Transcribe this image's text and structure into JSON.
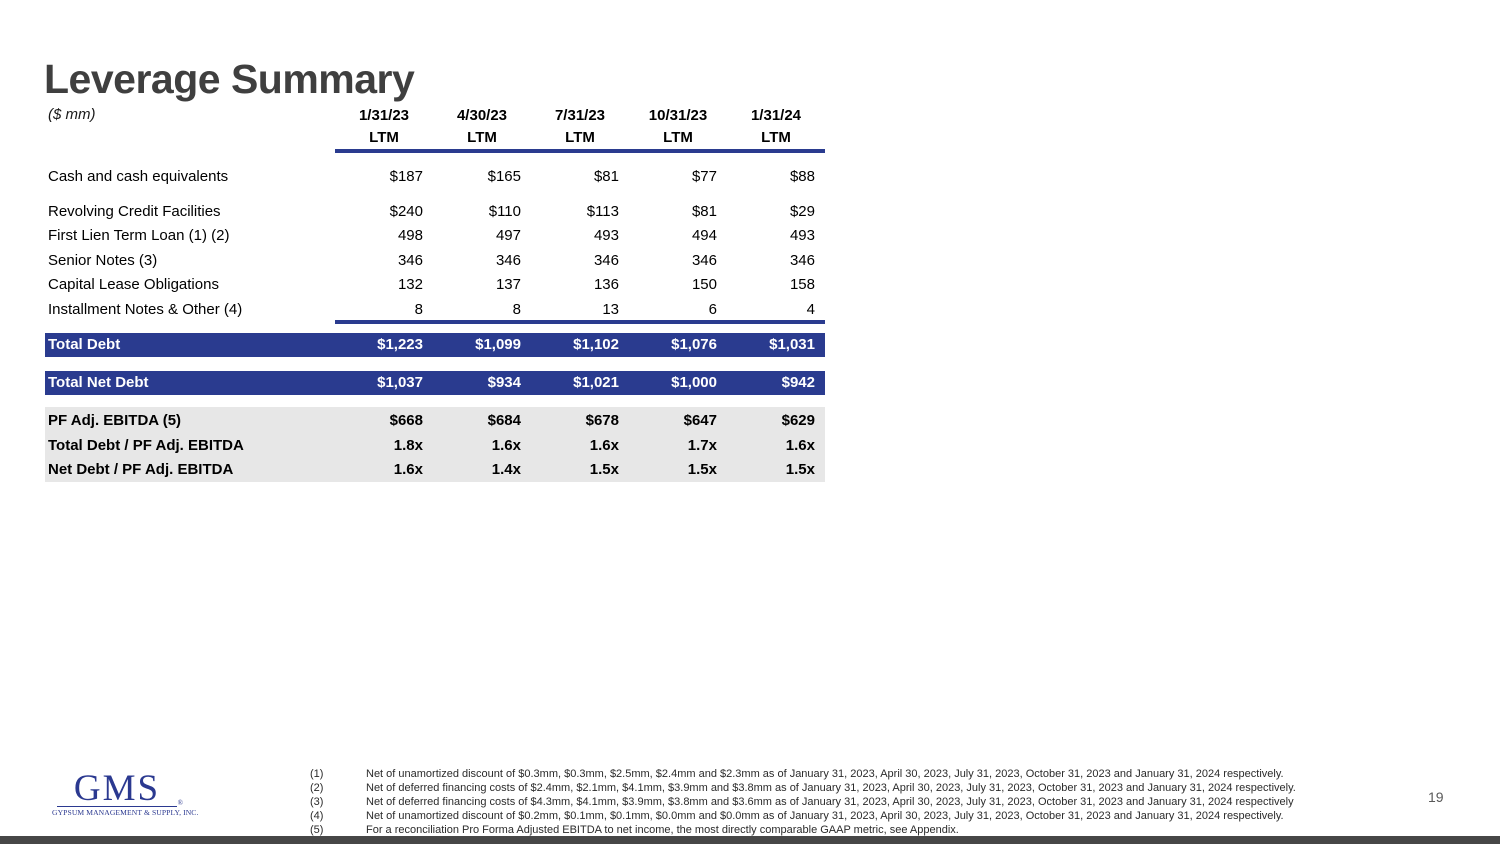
{
  "slide": {
    "title": "Leverage Summary",
    "units_label": "($ mm)",
    "page_number": "19"
  },
  "logo": {
    "acronym": "GMS",
    "caption": "GYPSUM MANAGEMENT & SUPPLY, INC.",
    "registered_mark": "®"
  },
  "colors": {
    "navy_bar": "#2A3B8F",
    "logo_navy": "#2B3990",
    "title_gray": "#3F3F3F",
    "ebitda_band_gray": "#E7E7E7",
    "footer_bar_gray": "#474747"
  },
  "table": {
    "columns": [
      {
        "date": "1/31/23",
        "period": "LTM"
      },
      {
        "date": "4/30/23",
        "period": "LTM"
      },
      {
        "date": "7/31/23",
        "period": "LTM"
      },
      {
        "date": "10/31/23",
        "period": "LTM"
      },
      {
        "date": "1/31/24",
        "period": "LTM"
      }
    ],
    "rows": [
      {
        "label": "Cash and cash equivalents",
        "values": [
          "$187",
          "$165",
          "$81",
          "$77",
          "$88"
        ]
      },
      {
        "label": "Revolving Credit Facilities",
        "values": [
          "$240",
          "$110",
          "$113",
          "$81",
          "$29"
        ]
      },
      {
        "label": "First Lien Term Loan (1) (2)",
        "values": [
          "498",
          "497",
          "493",
          "494",
          "493"
        ]
      },
      {
        "label": "Senior Notes (3)",
        "values": [
          "346",
          "346",
          "346",
          "346",
          "346"
        ]
      },
      {
        "label": "Capital Lease Obligations",
        "values": [
          "132",
          "137",
          "136",
          "150",
          "158"
        ]
      },
      {
        "label": "Installment Notes & Other (4)",
        "values": [
          "8",
          "8",
          "13",
          "6",
          "4"
        ]
      }
    ],
    "total_debt": {
      "label": "Total Debt",
      "values": [
        "$1,223",
        "$1,099",
        "$1,102",
        "$1,076",
        "$1,031"
      ]
    },
    "total_net_debt": {
      "label": "Total Net Debt",
      "values": [
        "$1,037",
        "$934",
        "$1,021",
        "$1,000",
        "$942"
      ]
    },
    "ebitda_rows": [
      {
        "label": "PF Adj. EBITDA (5)",
        "values": [
          "$668",
          "$684",
          "$678",
          "$647",
          "$629"
        ]
      },
      {
        "label": "Total Debt / PF Adj. EBITDA",
        "values": [
          "1.8x",
          "1.6x",
          "1.6x",
          "1.7x",
          "1.6x"
        ]
      },
      {
        "label": "Net Debt / PF Adj. EBITDA",
        "values": [
          "1.6x",
          "1.4x",
          "1.5x",
          "1.5x",
          "1.5x"
        ]
      }
    ]
  },
  "footnotes": [
    {
      "num": "(1)",
      "text": "Net of unamortized discount of $0.3mm, $0.3mm, $2.5mm, $2.4mm and $2.3mm as of January 31, 2023, April 30, 2023, July 31, 2023, October 31, 2023 and January 31, 2024 respectively."
    },
    {
      "num": "(2)",
      "text": "Net of deferred financing costs of $2.4mm, $2.1mm, $4.1mm, $3.9mm and $3.8mm as of January 31, 2023, April 30, 2023, July 31, 2023, October 31, 2023 and January 31, 2024 respectively."
    },
    {
      "num": "(3)",
      "text": "Net of deferred financing costs of $4.3mm, $4.1mm, $3.9mm, $3.8mm and $3.6mm as of January 31, 2023, April 30, 2023, July 31, 2023, October 31, 2023 and January 31, 2024 respectively"
    },
    {
      "num": "(4)",
      "text": "Net of unamortized discount of $0.2mm, $0.1mm, $0.1mm, $0.0mm and $0.0mm as of January 31, 2023, April 30, 2023, July 31, 2023, October 31, 2023 and January 31, 2024 respectively."
    },
    {
      "num": "(5)",
      "text": "For a reconciliation Pro Forma Adjusted EBITDA to net income, the most directly comparable GAAP metric, see Appendix."
    }
  ]
}
